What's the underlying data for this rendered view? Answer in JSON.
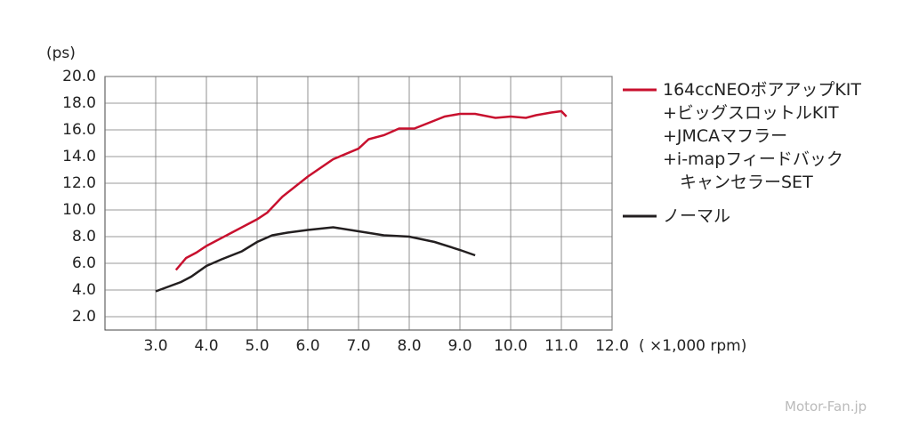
{
  "chart_data": {
    "type": "line",
    "y_label": "(ps)",
    "x_label": "( ×1,000 rpm)",
    "watermark": "Motor-Fan.jp",
    "xlim": [
      2,
      12
    ],
    "ylim": [
      1,
      20
    ],
    "grid": true,
    "xticks": [
      {
        "value": 3,
        "label": "3.0"
      },
      {
        "value": 4,
        "label": "4.0"
      },
      {
        "value": 5,
        "label": "5.0"
      },
      {
        "value": 6,
        "label": "6.0"
      },
      {
        "value": 7,
        "label": "7.0"
      },
      {
        "value": 8,
        "label": "8.0"
      },
      {
        "value": 9,
        "label": "9.0"
      },
      {
        "value": 10,
        "label": "10.0"
      },
      {
        "value": 11,
        "label": "11.0"
      },
      {
        "value": 12,
        "label": "12.0"
      }
    ],
    "yticks": [
      {
        "value": 2,
        "label": "2.0"
      },
      {
        "value": 4,
        "label": "4.0"
      },
      {
        "value": 6,
        "label": "6.0"
      },
      {
        "value": 8,
        "label": "8.0"
      },
      {
        "value": 10,
        "label": "10.0"
      },
      {
        "value": 12,
        "label": "12.0"
      },
      {
        "value": 14,
        "label": "14.0"
      },
      {
        "value": 16,
        "label": "16.0"
      },
      {
        "value": 18,
        "label": "18.0"
      },
      {
        "value": 20,
        "label": "20.0"
      }
    ],
    "series": [
      {
        "name": "164ccNEOボアアップKIT\n+ビッグスロットルKIT\n+JMCAマフラー\n+i-mapフィードバック\n　キャンセラーSET",
        "color": "#c8102e",
        "x": [
          3.4,
          3.6,
          3.8,
          4.0,
          4.5,
          5.0,
          5.2,
          5.5,
          6.0,
          6.5,
          7.0,
          7.2,
          7.5,
          7.8,
          8.1,
          8.5,
          8.7,
          9.0,
          9.3,
          9.7,
          10.0,
          10.3,
          10.5,
          10.8,
          11.0,
          11.1
        ],
        "values": [
          5.5,
          6.4,
          6.8,
          7.3,
          8.3,
          9.3,
          9.8,
          11.0,
          12.5,
          13.8,
          14.6,
          15.3,
          15.6,
          16.1,
          16.1,
          16.7,
          17.0,
          17.2,
          17.2,
          16.9,
          17.0,
          16.9,
          17.1,
          17.3,
          17.4,
          17.0
        ]
      },
      {
        "name": "ノーマル",
        "color": "#231f20",
        "x": [
          3.0,
          3.5,
          3.7,
          4.0,
          4.3,
          4.7,
          5.0,
          5.3,
          5.6,
          6.0,
          6.5,
          7.0,
          7.5,
          8.0,
          8.5,
          9.0,
          9.3
        ],
        "values": [
          3.9,
          4.6,
          5.0,
          5.8,
          6.3,
          6.9,
          7.6,
          8.1,
          8.3,
          8.5,
          8.7,
          8.4,
          8.1,
          8.0,
          7.6,
          7.0,
          6.6
        ]
      }
    ]
  }
}
